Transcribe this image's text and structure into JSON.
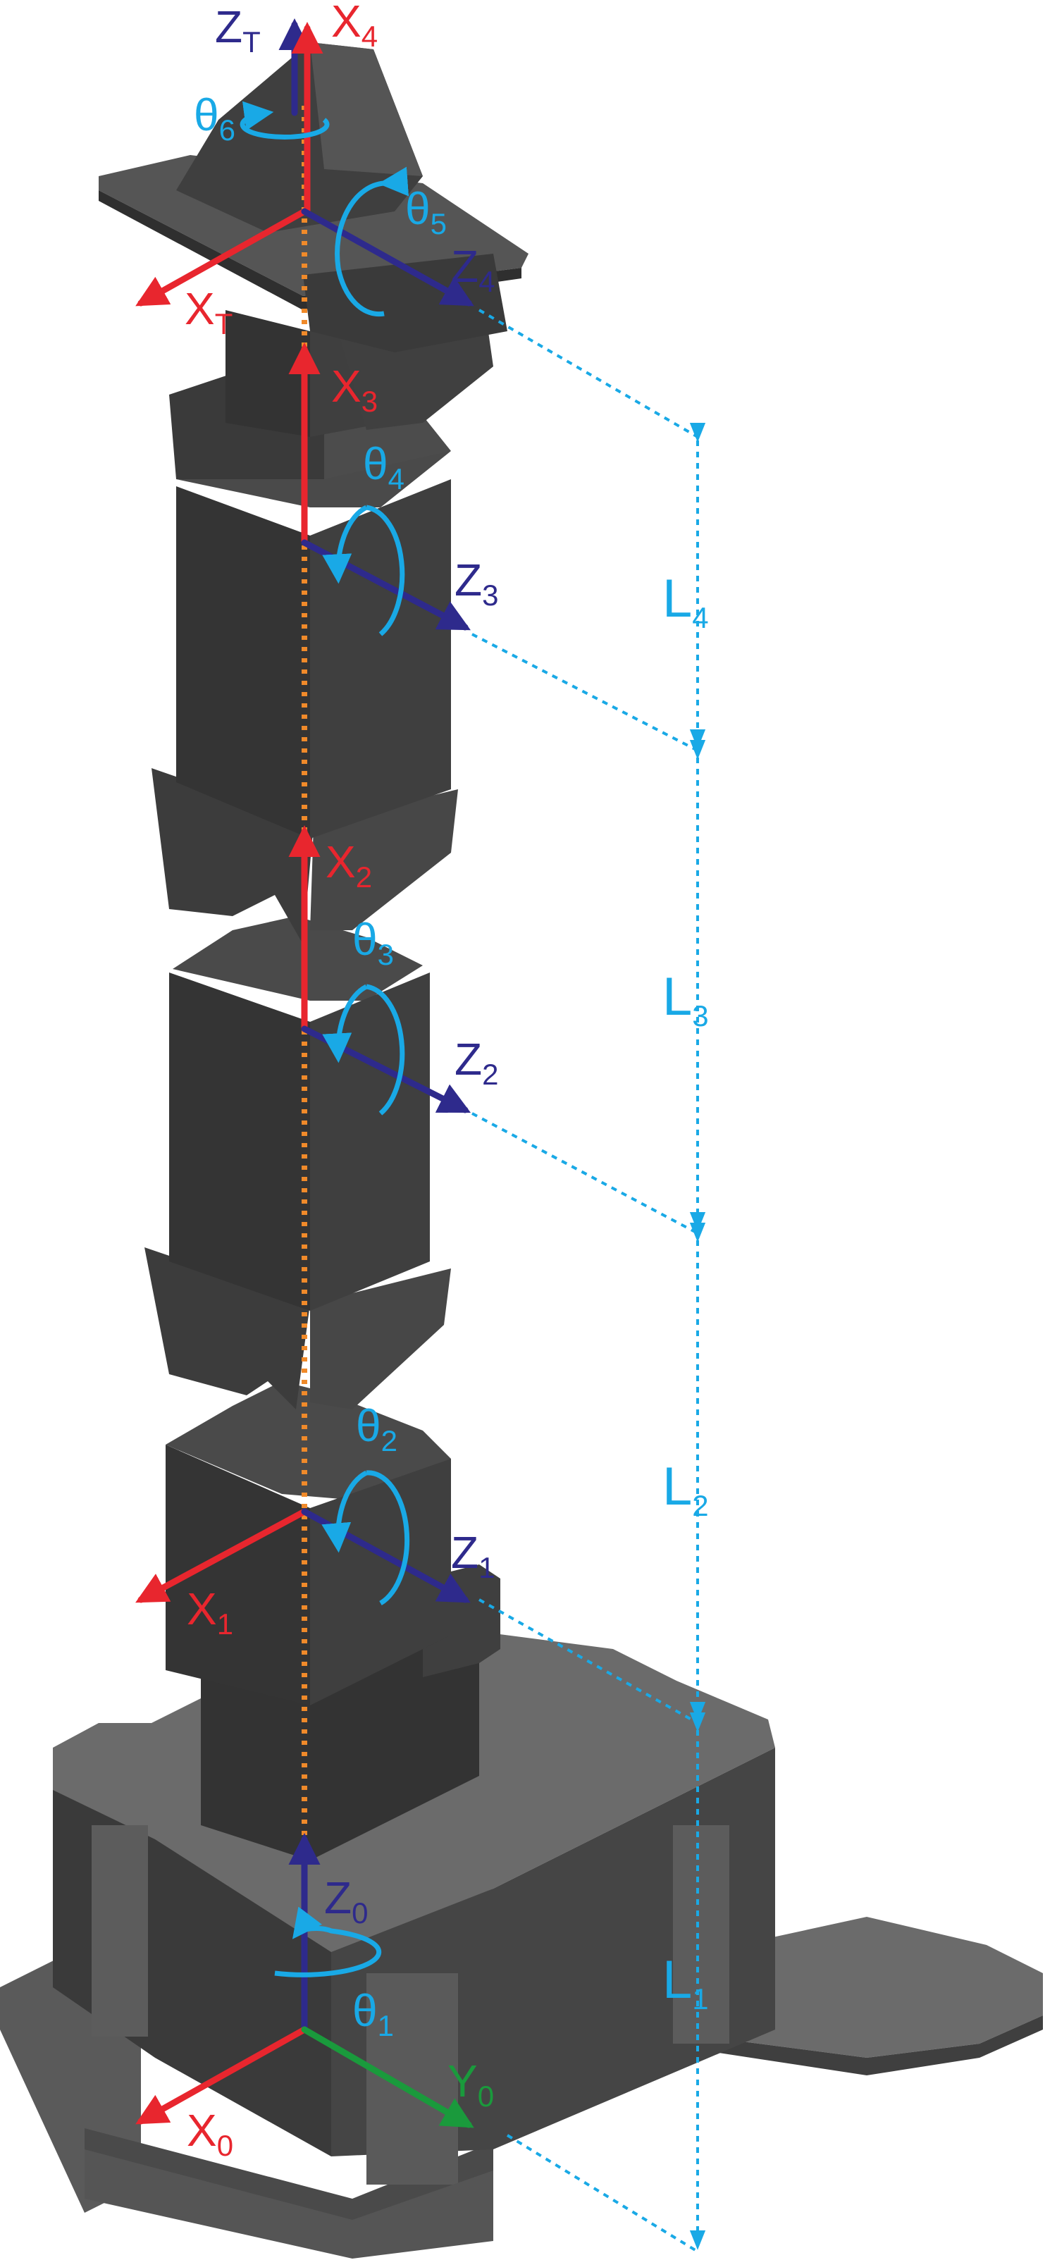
{
  "colors": {
    "x_axis": "#e8262e",
    "z_axis": "#2e2a8c",
    "y_axis": "#1a9a3c",
    "joint_rotation": "#19a9e6",
    "dimension": "#19a9e6",
    "centerline": "#f08a2a",
    "body_dark": "#3a3a3a",
    "body_mid": "#4a4a4a",
    "body_light": "#6b6b6b"
  },
  "frames": [
    {
      "axis": "Z",
      "sub": "T",
      "color_key": "z_axis"
    },
    {
      "axis": "X",
      "sub": "4",
      "color_key": "x_axis"
    },
    {
      "axis": "X",
      "sub": "T",
      "color_key": "x_axis"
    },
    {
      "axis": "Z",
      "sub": "4",
      "color_key": "z_axis"
    },
    {
      "axis": "X",
      "sub": "3",
      "color_key": "x_axis"
    },
    {
      "axis": "Z",
      "sub": "3",
      "color_key": "z_axis"
    },
    {
      "axis": "X",
      "sub": "2",
      "color_key": "x_axis"
    },
    {
      "axis": "Z",
      "sub": "2",
      "color_key": "z_axis"
    },
    {
      "axis": "X",
      "sub": "1",
      "color_key": "x_axis"
    },
    {
      "axis": "Z",
      "sub": "1",
      "color_key": "z_axis"
    },
    {
      "axis": "Z",
      "sub": "0",
      "color_key": "z_axis"
    },
    {
      "axis": "X",
      "sub": "0",
      "color_key": "x_axis"
    },
    {
      "axis": "Y",
      "sub": "0",
      "color_key": "y_axis"
    }
  ],
  "joints": [
    {
      "symbol": "θ",
      "sub": "6"
    },
    {
      "symbol": "θ",
      "sub": "5"
    },
    {
      "symbol": "θ",
      "sub": "4"
    },
    {
      "symbol": "θ",
      "sub": "3"
    },
    {
      "symbol": "θ",
      "sub": "2"
    },
    {
      "symbol": "θ",
      "sub": "1"
    }
  ],
  "links": [
    {
      "symbol": "L",
      "sub": "4"
    },
    {
      "symbol": "L",
      "sub": "3"
    },
    {
      "symbol": "L",
      "sub": "2"
    },
    {
      "symbol": "L",
      "sub": "1"
    }
  ]
}
